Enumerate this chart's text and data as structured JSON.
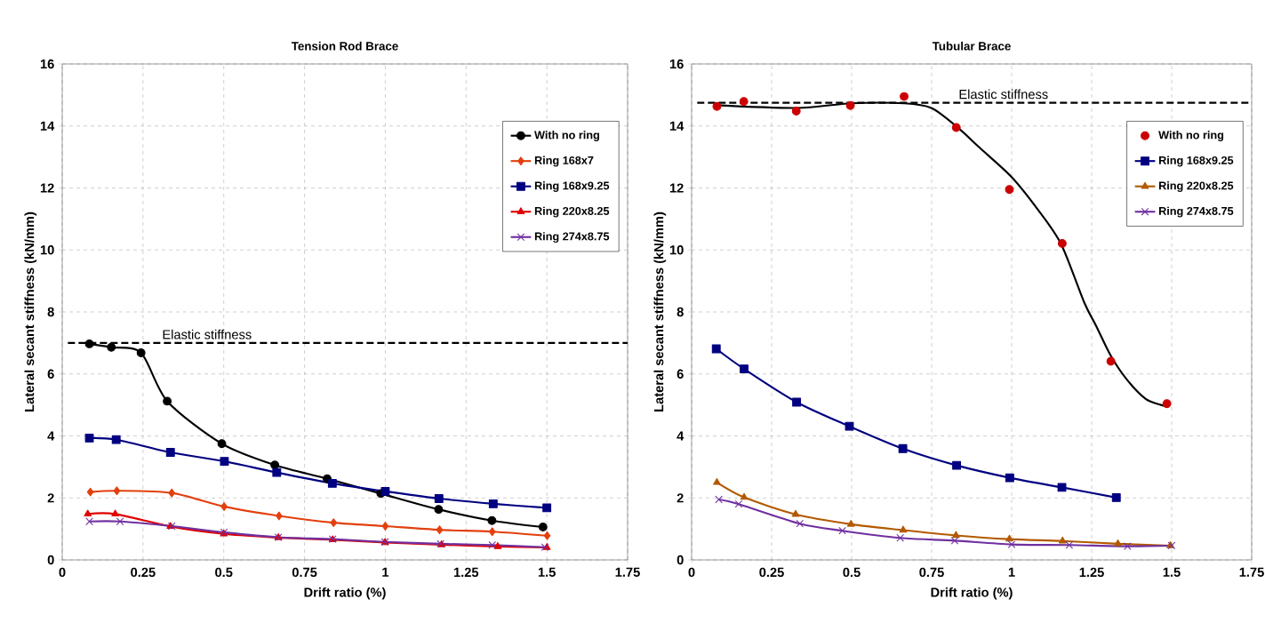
{
  "chart_data": [
    {
      "type": "line",
      "title": "Tension Rod Brace",
      "xlabel": "Drift ratio (%)",
      "ylabel": "Lateral secant stiffness (kN/mm)",
      "xlim": [
        0,
        1.75
      ],
      "xticks": [
        0,
        0.25,
        0.5,
        0.75,
        1,
        1.25,
        1.5,
        1.75
      ],
      "ylim": [
        0,
        16
      ],
      "yticks": [
        0,
        2,
        4,
        6,
        8,
        10,
        12,
        14,
        16
      ],
      "grid": true,
      "legend": "top right",
      "ref_lines": [
        {
          "axis": "y",
          "value": 7,
          "label": "Elastic stiffness",
          "color": "#000000",
          "line_style": "dashed"
        }
      ],
      "series": [
        {
          "name": "With no ring",
          "color": "#000000",
          "marker": "circle",
          "x": [
            0.084,
            0.152,
            0.244,
            0.325,
            0.494,
            0.658,
            0.82,
            0.986,
            1.165,
            1.33,
            1.488
          ],
          "values": [
            6.97,
            6.86,
            6.68,
            5.12,
            3.75,
            3.06,
            2.62,
            2.14,
            1.63,
            1.27,
            1.06
          ]
        },
        {
          "name": "Ring 168x7",
          "color": "#e2400e",
          "marker": "diamond",
          "x": [
            0.087,
            0.169,
            0.339,
            0.501,
            0.671,
            0.84,
            1.0,
            1.168,
            1.331,
            1.501
          ],
          "values": [
            2.19,
            2.23,
            2.16,
            1.72,
            1.42,
            1.2,
            1.09,
            0.97,
            0.91,
            0.78
          ]
        },
        {
          "name": "Ring 168x9.25",
          "color": "#000080",
          "marker": "square",
          "x": [
            0.084,
            0.167,
            0.335,
            0.502,
            0.664,
            0.836,
            1.0,
            1.166,
            1.334,
            1.5
          ],
          "values": [
            3.93,
            3.88,
            3.47,
            3.18,
            2.82,
            2.47,
            2.21,
            1.98,
            1.81,
            1.68
          ]
        },
        {
          "name": "Ring 220x8.25",
          "color": "#e00000",
          "marker": "triangle",
          "x": [
            0.079,
            0.164,
            0.335,
            0.5,
            0.669,
            0.837,
            0.999,
            1.174,
            1.348,
            1.5
          ],
          "values": [
            1.48,
            1.48,
            1.08,
            0.84,
            0.72,
            0.65,
            0.56,
            0.49,
            0.43,
            0.4
          ]
        },
        {
          "name": "Ring 274x8.75",
          "color": "#7030a0",
          "marker": "cross",
          "x": [
            0.084,
            0.179,
            0.339,
            0.501,
            0.669,
            0.837,
            0.999,
            1.171,
            1.331,
            1.494
          ],
          "values": [
            1.24,
            1.24,
            1.09,
            0.89,
            0.73,
            0.67,
            0.58,
            0.52,
            0.48,
            0.41
          ]
        }
      ]
    },
    {
      "type": "line",
      "title": "Tubular Brace",
      "xlabel": "Drift ratio (%)",
      "ylabel": "Lateral secant stiffness (kN/mm)",
      "xlim": [
        0,
        1.75
      ],
      "xticks": [
        0,
        0.25,
        0.5,
        0.75,
        1,
        1.25,
        1.5,
        1.75
      ],
      "ylim": [
        0,
        16
      ],
      "yticks": [
        0,
        2,
        4,
        6,
        8,
        10,
        12,
        14,
        16
      ],
      "grid": true,
      "legend": "top right",
      "ref_lines": [
        {
          "axis": "y",
          "value": 14.75,
          "label": "Elastic stiffness",
          "color": "#000000",
          "line_style": "dashed"
        }
      ],
      "series": [
        {
          "name": "With no ring",
          "type": "scatter",
          "color": "#cc0000",
          "marker": "circle",
          "x": [
            0.079,
            0.163,
            0.327,
            0.496,
            0.664,
            0.827,
            0.993,
            1.158,
            1.31,
            1.485
          ],
          "values": [
            14.63,
            14.79,
            14.48,
            14.66,
            14.95,
            13.95,
            11.95,
            10.21,
            6.41,
            5.04
          ]
        },
        {
          "type": "line",
          "color": "#000000",
          "marker": "none",
          "x": [
            0.079,
            0.328,
            0.498,
            0.665,
            0.749,
            0.828,
            0.904,
            1.0,
            1.084,
            1.155,
            1.227,
            1.263,
            1.309,
            1.359,
            1.418,
            1.466,
            1.49
          ],
          "values": [
            14.67,
            14.58,
            14.73,
            14.73,
            14.58,
            13.98,
            13.26,
            12.35,
            11.27,
            10.18,
            8.3,
            7.57,
            6.6,
            5.83,
            5.2,
            5.0,
            4.95
          ]
        },
        {
          "name": "Ring 168x9.25",
          "color": "#000080",
          "marker": "square",
          "x": [
            0.077,
            0.164,
            0.328,
            0.493,
            0.66,
            0.828,
            0.994,
            1.157,
            1.327
          ],
          "values": [
            6.81,
            6.16,
            5.09,
            4.31,
            3.59,
            3.05,
            2.65,
            2.34,
            2.01
          ]
        },
        {
          "name": "Ring 220x8.25",
          "color": "#b35900",
          "marker": "triangle",
          "x": [
            0.079,
            0.164,
            0.325,
            0.498,
            0.661,
            0.826,
            0.993,
            1.159,
            1.332,
            1.496
          ],
          "values": [
            2.5,
            2.02,
            1.47,
            1.15,
            0.96,
            0.79,
            0.67,
            0.61,
            0.52,
            0.46
          ]
        },
        {
          "name": "Ring 274x8.75",
          "color": "#7030a0",
          "marker": "cross",
          "x": [
            0.085,
            0.147,
            0.338,
            0.471,
            0.652,
            0.822,
            1.0,
            1.18,
            1.362,
            1.5
          ],
          "values": [
            1.95,
            1.8,
            1.17,
            0.94,
            0.71,
            0.62,
            0.5,
            0.48,
            0.44,
            0.46
          ]
        }
      ]
    }
  ]
}
